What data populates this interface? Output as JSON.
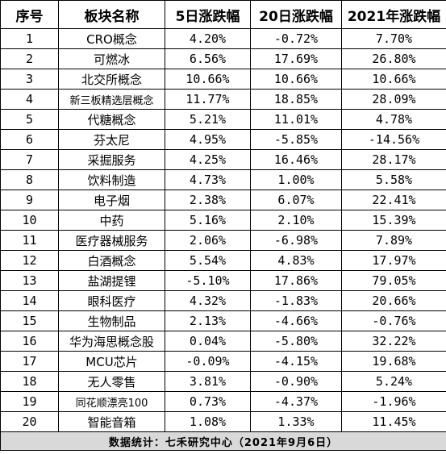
{
  "table": {
    "headers": [
      "序号",
      "板块名称",
      "5日涨跌幅",
      "20日涨跌幅",
      "2021年涨跌幅"
    ],
    "rows": [
      [
        "1",
        "CRO概念",
        "4.20%",
        "-0.72%",
        "7.70%"
      ],
      [
        "2",
        "可燃冰",
        "6.56%",
        "17.69%",
        "26.80%"
      ],
      [
        "3",
        "北交所概念",
        "10.66%",
        "10.66%",
        "10.66%"
      ],
      [
        "4",
        "新三板精选层概念",
        "11.77%",
        "18.85%",
        "28.09%"
      ],
      [
        "5",
        "代糖概念",
        "5.21%",
        "11.01%",
        "4.78%"
      ],
      [
        "6",
        "芬太尼",
        "4.95%",
        "-5.85%",
        "-14.56%"
      ],
      [
        "7",
        "采掘服务",
        "4.25%",
        "16.46%",
        "28.17%"
      ],
      [
        "8",
        "饮料制造",
        "4.73%",
        "1.00%",
        "5.58%"
      ],
      [
        "9",
        "电子烟",
        "2.38%",
        "6.07%",
        "22.41%"
      ],
      [
        "10",
        "中药",
        "5.16%",
        "2.10%",
        "15.39%"
      ],
      [
        "11",
        "医疗器械服务",
        "2.06%",
        "-6.98%",
        "7.89%"
      ],
      [
        "12",
        "白酒概念",
        "5.54%",
        "4.83%",
        "17.97%"
      ],
      [
        "13",
        "盐湖提锂",
        "-5.10%",
        "17.86%",
        "79.05%"
      ],
      [
        "14",
        "眼科医疗",
        "4.32%",
        "-1.83%",
        "20.66%"
      ],
      [
        "15",
        "生物制品",
        "2.13%",
        "-4.66%",
        "-0.76%"
      ],
      [
        "16",
        "华为海思概念股",
        "0.04%",
        "-5.80%",
        "32.22%"
      ],
      [
        "17",
        "MCU芯片",
        "-0.09%",
        "-4.15%",
        "19.68%"
      ],
      [
        "18",
        "无人零售",
        "3.81%",
        "-0.90%",
        "5.24%"
      ],
      [
        "19",
        "同花顺漂亮100",
        "0.73%",
        "-4.37%",
        "-1.96%"
      ],
      [
        "20",
        "智能音箱",
        "1.08%",
        "1.33%",
        "11.45%"
      ]
    ],
    "footer": "数据统计：七禾研究中心（2021年9月6日）"
  }
}
